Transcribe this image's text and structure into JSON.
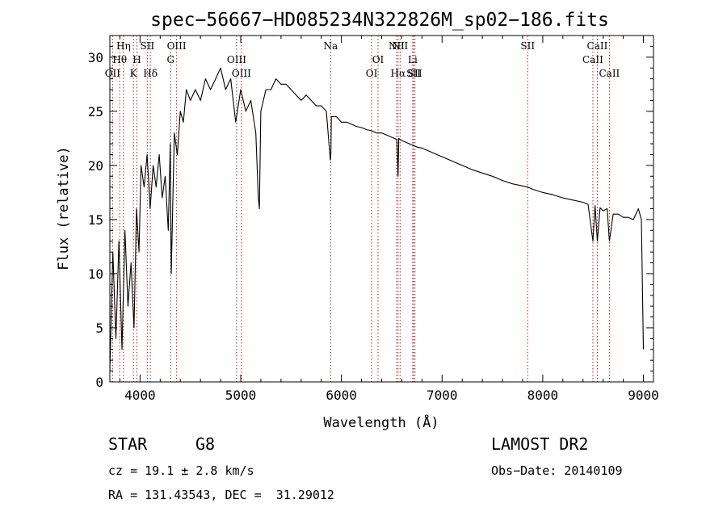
{
  "chart_data": {
    "type": "line",
    "title": "spec−56667−HD085234N322826M_sp02−186.fits",
    "xlabel": "Wavelength (Å)",
    "ylabel": "Flux (relative)",
    "xlim": [
      3700,
      9100
    ],
    "ylim": [
      0,
      32
    ],
    "xticks": [
      4000,
      5000,
      6000,
      7000,
      8000,
      9000
    ],
    "yticks": [
      0,
      5,
      10,
      15,
      20,
      25,
      30
    ],
    "grid": false,
    "line_color": "#000000",
    "marker_color": "#b22222",
    "series": [
      {
        "x": [
          3700,
          3730,
          3760,
          3790,
          3820,
          3850,
          3880,
          3910,
          3940,
          3965,
          3990,
          4010,
          4040,
          4070,
          4100,
          4130,
          4160,
          4190,
          4220,
          4250,
          4280,
          4300,
          4310,
          4340,
          4370,
          4400,
          4430,
          4460,
          4500,
          4550,
          4600,
          4650,
          4700,
          4750,
          4800,
          4850,
          4900,
          4950,
          5000,
          5050,
          5100,
          5150,
          5175,
          5185,
          5200,
          5250,
          5300,
          5350,
          5400,
          5450,
          5500,
          5550,
          5600,
          5650,
          5700,
          5750,
          5800,
          5850,
          5890,
          5895,
          5900,
          5950,
          6000,
          6050,
          6100,
          6150,
          6200,
          6250,
          6300,
          6350,
          6400,
          6450,
          6500,
          6550,
          6563,
          6570,
          6600,
          6650,
          6700,
          6750,
          6800,
          6850,
          6900,
          6950,
          7000,
          7100,
          7200,
          7300,
          7400,
          7500,
          7600,
          7700,
          7800,
          7850,
          7900,
          8000,
          8100,
          8200,
          8300,
          8400,
          8450,
          8498,
          8520,
          8542,
          8570,
          8600,
          8640,
          8662,
          8700,
          8750,
          8800,
          8850,
          8900,
          8950,
          8980,
          9000
        ],
        "y": [
          1,
          12,
          4,
          13,
          3,
          14,
          7,
          11,
          5,
          16,
          12,
          20,
          18,
          21,
          16,
          20,
          18,
          21,
          17,
          19,
          14,
          22,
          10,
          23,
          21,
          25,
          24,
          27,
          26,
          27,
          26,
          28,
          27,
          28,
          29,
          27,
          28,
          24,
          27,
          25,
          26,
          23,
          17,
          16,
          25,
          27,
          27,
          28,
          27.5,
          27.5,
          27,
          26.5,
          26,
          26.5,
          26,
          25.5,
          25.5,
          25,
          20.5,
          21,
          24.5,
          24.5,
          24,
          24,
          23.8,
          23.6,
          23.5,
          23.3,
          23.2,
          23,
          23,
          22.8,
          22.6,
          22.4,
          19,
          22.5,
          22.3,
          22.1,
          21.9,
          21.7,
          21.6,
          21.4,
          21.2,
          21,
          20.8,
          20.4,
          20,
          19.6,
          19.3,
          19,
          18.6,
          18.3,
          18.1,
          18,
          17.8,
          17.5,
          17.3,
          17,
          16.8,
          16.6,
          16.4,
          13,
          16.3,
          13,
          16.1,
          15.8,
          16,
          13,
          15.5,
          15.5,
          15.2,
          15.2,
          15,
          16,
          15,
          3
        ]
      }
    ],
    "line_markers": [
      {
        "label": "OII",
        "x": 3727,
        "row": 3
      },
      {
        "label": "Hθ",
        "x": 3798,
        "row": 2
      },
      {
        "label": "Hη",
        "x": 3835,
        "row": 1
      },
      {
        "label": "K",
        "x": 3934,
        "row": 3
      },
      {
        "label": "H",
        "x": 3969,
        "row": 2
      },
      {
        "label": "SII",
        "x": 4072,
        "row": 1
      },
      {
        "label": "Hδ",
        "x": 4102,
        "row": 3
      },
      {
        "label": "G",
        "x": 4304,
        "row": 2
      },
      {
        "label": "OIII",
        "x": 4363,
        "row": 1
      },
      {
        "label": "OIII",
        "x": 4959,
        "row": 2
      },
      {
        "label": "OIII",
        "x": 5007,
        "row": 3
      },
      {
        "label": "Na",
        "x": 5893,
        "row": 1
      },
      {
        "label": "OI",
        "x": 6300,
        "row": 3
      },
      {
        "label": "OI",
        "x": 6364,
        "row": 2
      },
      {
        "label": "NII",
        "x": 6548,
        "row": 1
      },
      {
        "label": "Hα",
        "x": 6563,
        "row": 3
      },
      {
        "label": "NII",
        "x": 6583,
        "row": 1
      },
      {
        "label": "Li",
        "x": 6708,
        "row": 2
      },
      {
        "label": "SII",
        "x": 6717,
        "row": 3
      },
      {
        "label": "SII",
        "x": 6731,
        "row": 3
      },
      {
        "label": "SII",
        "x": 7850,
        "row": 1
      },
      {
        "label": "CaII",
        "x": 8498,
        "row": 2
      },
      {
        "label": "CaII",
        "x": 8542,
        "row": 1
      },
      {
        "label": "CaII",
        "x": 8662,
        "row": 3
      }
    ]
  },
  "info": {
    "object_class": "STAR",
    "subclass": "G8",
    "survey": "LAMOST DR2",
    "redshift": "cz = 19.1 ± 2.8 km/s",
    "obs_date": "Obs−Date: 20140109",
    "coords": "RA = 131.43543, DEC =  31.29012"
  }
}
